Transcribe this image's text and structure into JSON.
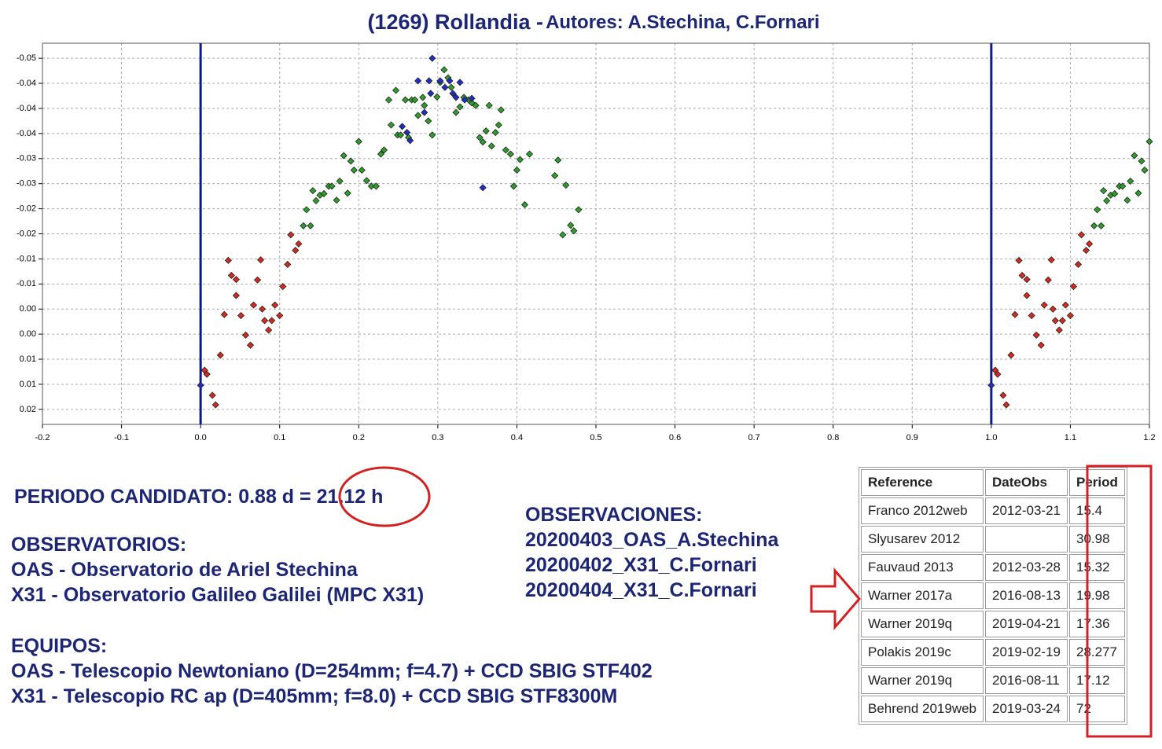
{
  "title": "(1269) Rollandia -",
  "authors": "Autores: A.Stechina, C.Fornari",
  "chart_data": {
    "type": "scatter",
    "xlim": [
      -0.2,
      1.2
    ],
    "xticks": [
      -0.2,
      -0.1,
      {
        "value": 0,
        "label": "0.0"
      },
      0.1,
      0.2,
      0.3,
      0.4,
      0.5,
      0.6,
      0.7,
      0.8,
      0.9,
      {
        "value": 1,
        "label": "1.0"
      },
      1.1,
      1.2
    ],
    "ylim": [
      -0.053,
      0.023
    ],
    "y_inverted": true,
    "yticks": [
      {
        "value": -0.05,
        "label": "-0.05"
      },
      {
        "value": -0.045,
        "label": "-0.04"
      },
      {
        "value": -0.04,
        "label": "-0.04"
      },
      {
        "value": -0.035,
        "label": "-0.04"
      },
      {
        "value": -0.03,
        "label": "-0.03"
      },
      {
        "value": -0.025,
        "label": "-0.03"
      },
      {
        "value": -0.02,
        "label": "-0.02"
      },
      {
        "value": -0.015,
        "label": "-0.02"
      },
      {
        "value": -0.01,
        "label": "-0.01"
      },
      {
        "value": -0.005,
        "label": "-0.01"
      },
      {
        "value": 0,
        "label": "0.00"
      },
      {
        "value": 0.005,
        "label": "0.00"
      },
      {
        "value": 0.01,
        "label": "0.01"
      },
      {
        "value": 0.015,
        "label": "0.01"
      },
      {
        "value": 0.02,
        "label": "0.02"
      }
    ],
    "grid": true,
    "vlines": [
      0,
      1
    ],
    "vline_color": "#0b1a8c",
    "series": [
      {
        "color": "#d42a1e",
        "x": [
          0.005,
          0.008,
          0.015,
          0.019,
          0.025,
          0.03,
          0.035,
          0.039,
          0.045,
          0.045,
          0.051,
          0.057,
          0.063,
          0.067,
          0.072,
          0.076,
          0.078,
          0.081,
          0.086,
          0.09,
          0.094,
          0.1,
          0.104,
          0.11,
          0.114,
          0.12,
          0.124,
          1.005,
          1.008,
          1.015,
          1.019,
          1.025,
          1.03,
          1.035,
          1.039,
          1.045,
          1.045,
          1.051,
          1.057,
          1.063,
          1.067,
          1.072,
          1.076,
          1.078,
          1.081,
          1.086,
          1.09,
          1.094,
          1.1,
          1.104,
          1.11,
          1.114,
          1.12,
          1.124
        ],
        "values": [
          0.0122,
          0.013,
          0.0172,
          0.0191,
          0.0092,
          0.0011,
          -0.0097,
          -0.0067,
          -0.0059,
          -0.0027,
          0.0013,
          0.0052,
          0.0072,
          -0.0008,
          -0.0058,
          -0.0098,
          0.0,
          0.0023,
          0.0042,
          0.0023,
          -0.0008,
          0.0013,
          -0.0045,
          -0.0089,
          -0.0148,
          -0.0117,
          -0.013,
          0.0122,
          0.013,
          0.0172,
          0.0191,
          0.0092,
          0.0011,
          -0.0097,
          -0.0067,
          -0.0059,
          -0.0027,
          0.0013,
          0.0052,
          0.0072,
          -0.0008,
          -0.0058,
          -0.0098,
          0.0,
          0.0023,
          0.0042,
          0.0023,
          -0.0008,
          0.0013,
          -0.0045,
          -0.0089,
          -0.0148,
          -0.0117,
          -0.013
        ]
      },
      {
        "color": "#2e9e2a",
        "x": [
          0.13,
          0.134,
          0.139,
          0.142,
          0.146,
          0.151,
          0.156,
          0.162,
          0.166,
          0.172,
          0.176,
          0.181,
          0.186,
          0.19,
          0.194,
          0.2,
          0.204,
          0.21,
          0.216,
          0.222,
          0.228,
          0.232,
          0.238,
          0.241,
          0.247,
          0.249,
          0.253,
          0.259,
          0.263,
          0.267,
          0.271,
          0.275,
          0.281,
          0.283,
          0.288,
          0.293,
          0.299,
          0.303,
          0.308,
          0.313,
          0.317,
          0.323,
          0.328,
          0.333,
          0.339,
          0.343,
          0.348,
          0.353,
          0.357,
          0.361,
          0.365,
          0.368,
          0.373,
          0.377,
          0.38,
          0.386,
          0.392,
          0.396,
          0.4,
          0.404,
          0.41,
          0.416,
          0.448,
          0.452,
          0.458,
          0.462,
          0.468,
          0.472,
          0.478,
          1.13,
          1.134,
          1.139,
          1.142,
          1.146,
          1.151,
          1.156,
          1.162,
          1.166,
          1.172,
          1.176,
          1.181,
          1.186,
          1.19,
          1.194,
          1.2
        ],
        "values": [
          -0.0166,
          -0.0198,
          -0.0166,
          -0.0236,
          -0.0216,
          -0.0227,
          -0.023,
          -0.0245,
          -0.0245,
          -0.0217,
          -0.0255,
          -0.0306,
          -0.0231,
          -0.0295,
          -0.0277,
          -0.0334,
          -0.0277,
          -0.0256,
          -0.0245,
          -0.0245,
          -0.0309,
          -0.0317,
          -0.0417,
          -0.0367,
          -0.0436,
          -0.0347,
          -0.0347,
          -0.0417,
          -0.0342,
          -0.0417,
          -0.0417,
          -0.0386,
          -0.0422,
          -0.0406,
          -0.0375,
          -0.0347,
          -0.0423,
          -0.0452,
          -0.0477,
          -0.0461,
          -0.0442,
          -0.0392,
          -0.0403,
          -0.0422,
          -0.0417,
          -0.0411,
          -0.0406,
          -0.0342,
          -0.0333,
          -0.0355,
          -0.0406,
          -0.0325,
          -0.0352,
          -0.0367,
          -0.0397,
          -0.0317,
          -0.0309,
          -0.0245,
          -0.0277,
          -0.0298,
          -0.0208,
          -0.0309,
          -0.0266,
          -0.0297,
          -0.0148,
          -0.0247,
          -0.0167,
          -0.0156,
          -0.0198,
          -0.0166,
          -0.0198,
          -0.0166,
          -0.0236,
          -0.0216,
          -0.0227,
          -0.023,
          -0.0245,
          -0.0245,
          -0.0217,
          -0.0255,
          -0.0306,
          -0.0231,
          -0.0295,
          -0.0277,
          -0.0334
        ]
      },
      {
        "color": "#1f2fc4",
        "x": [
          0.0,
          1.0,
          0.293,
          0.275,
          0.289,
          0.303,
          0.309,
          0.315,
          0.319,
          0.328,
          0.283,
          0.291,
          0.255,
          0.261,
          0.265,
          0.323,
          0.334,
          0.343,
          0.357
        ],
        "values": [
          0.0152,
          0.0152,
          -0.05,
          -0.0455,
          -0.0455,
          -0.0455,
          -0.0442,
          -0.0455,
          -0.043,
          -0.0452,
          -0.0392,
          -0.043,
          -0.0364,
          -0.0352,
          -0.0336,
          -0.0422,
          -0.0417,
          -0.042,
          -0.0242
        ]
      }
    ]
  },
  "period": {
    "label": "PERIODO CANDIDATO: 0.88 d = ",
    "value": "21.12 h"
  },
  "observatories": {
    "heading": "OBSERVATORIOS:",
    "lines": [
      "OAS - Observatorio de Ariel Stechina",
      "X31 - Observatorio Galileo Galilei (MPC X31)"
    ]
  },
  "equipment": {
    "heading": "EQUIPOS:",
    "lines": [
      "OAS - Telescopio Newtoniano (D=254mm; f=4.7) + CCD SBIG STF402",
      "X31 - Telescopio RC ap (D=405mm; f=8.0) + CCD SBIG STF8300M"
    ]
  },
  "observations": {
    "heading": "OBSERVACIONES:",
    "lines": [
      "20200403_OAS_A.Stechina",
      "20200402_X31_C.Fornari",
      "20200404_X31_C.Fornari"
    ]
  },
  "table": {
    "header": [
      "Reference",
      "DateObs",
      "Period"
    ],
    "rows": [
      [
        "Franco 2012web",
        "2012-03-21",
        "15.4"
      ],
      [
        "Slyusarev 2012",
        null,
        "30.98"
      ],
      [
        "Fauvaud 2013",
        "2012-03-28",
        "15.32"
      ],
      [
        "Warner 2017a",
        "2016-08-13",
        "19.98"
      ],
      [
        "Warner 2019q",
        "2019-04-21",
        "17.36"
      ],
      [
        "Polakis 2019c",
        "2019-02-19",
        "28.277"
      ],
      [
        "Warner 2019q",
        "2016-08-11",
        "17.12"
      ],
      [
        "Behrend 2019web",
        "2019-03-24",
        "72"
      ]
    ]
  }
}
